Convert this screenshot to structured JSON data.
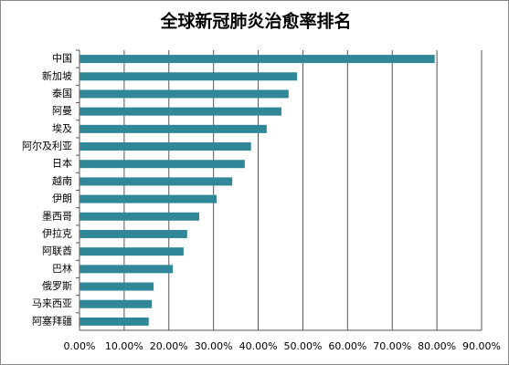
{
  "chart_data": {
    "type": "bar",
    "orientation": "horizontal",
    "title": "全球新冠肺炎治愈率排名",
    "categories": [
      "中国",
      "新加坡",
      "泰国",
      "阿曼",
      "埃及",
      "阿尔及利亚",
      "日本",
      "越南",
      "伊朗",
      "墨西哥",
      "伊拉克",
      "阿联酋",
      "巴林",
      "俄罗斯",
      "马来西亚",
      "阿塞拜疆"
    ],
    "values": [
      79.5,
      48.7,
      46.8,
      45.2,
      41.9,
      38.4,
      37.0,
      34.2,
      30.7,
      26.8,
      24.1,
      23.3,
      20.9,
      16.6,
      16.2,
      15.5
    ],
    "color": "#2f8797",
    "xlim": [
      0,
      90
    ],
    "xticks": [
      {
        "value": 0,
        "label": "0.00%"
      },
      {
        "value": 10,
        "label": "10.00%"
      },
      {
        "value": 20,
        "label": "20.00%"
      },
      {
        "value": 30,
        "label": "30.00%"
      },
      {
        "value": 40,
        "label": "40.00%"
      },
      {
        "value": 50,
        "label": "50.00%"
      },
      {
        "value": 60,
        "label": "60.00%"
      },
      {
        "value": 70,
        "label": "70.00%"
      },
      {
        "value": 80,
        "label": "80.00%"
      },
      {
        "value": 90,
        "label": "90.00%"
      }
    ],
    "grid": true
  }
}
